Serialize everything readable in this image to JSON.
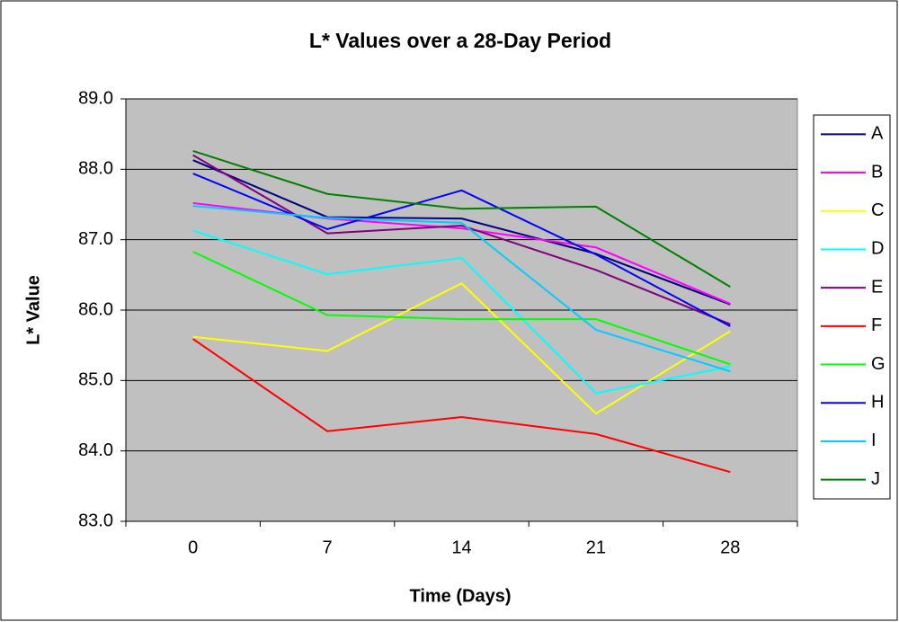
{
  "chart_data": {
    "type": "line",
    "title": "L* Values over a 28-Day Period",
    "x_label": "Time (Days)",
    "y_label": "L* Value",
    "categories": [
      "0",
      "7",
      "14",
      "21",
      "28"
    ],
    "series": [
      {
        "name": "A",
        "color": "#000080",
        "values": [
          88.13,
          87.32,
          87.3,
          86.8,
          86.08
        ]
      },
      {
        "name": "B",
        "color": "#FF00FF",
        "values": [
          87.52,
          87.3,
          87.16,
          86.89,
          86.09
        ]
      },
      {
        "name": "C",
        "color": "#FFFF00",
        "values": [
          85.62,
          85.42,
          86.38,
          84.53,
          85.7
        ]
      },
      {
        "name": "D",
        "color": "#00FFFF",
        "values": [
          87.13,
          86.51,
          86.74,
          84.82,
          85.2
        ]
      },
      {
        "name": "E",
        "color": "#800080",
        "values": [
          88.2,
          87.09,
          87.2,
          86.57,
          85.8
        ]
      },
      {
        "name": "F",
        "color": "#FF0000",
        "values": [
          85.59,
          84.28,
          84.48,
          84.24,
          83.7
        ]
      },
      {
        "name": "G",
        "color": "#00FF00",
        "values": [
          86.83,
          85.93,
          85.87,
          85.87,
          85.23
        ]
      },
      {
        "name": "H",
        "color": "#0000FF",
        "values": [
          87.94,
          87.15,
          87.7,
          86.79,
          85.77
        ]
      },
      {
        "name": "I",
        "color": "#00CCFF",
        "values": [
          87.48,
          87.31,
          87.24,
          85.72,
          85.13
        ]
      },
      {
        "name": "J",
        "color": "#008000",
        "values": [
          88.26,
          87.65,
          87.44,
          87.47,
          86.33
        ]
      }
    ],
    "ylim": [
      83,
      89
    ],
    "yticks": [
      {
        "value": 83,
        "label": "83.0"
      },
      {
        "value": 84,
        "label": "84.0"
      },
      {
        "value": 85,
        "label": "85.0"
      },
      {
        "value": 86,
        "label": "86.0"
      },
      {
        "value": 87,
        "label": "87.0"
      },
      {
        "value": 88,
        "label": "88.0"
      },
      {
        "value": 89,
        "label": "89.0"
      }
    ],
    "grid": true,
    "legend": "right",
    "plot_background": "#C0C0C0"
  }
}
